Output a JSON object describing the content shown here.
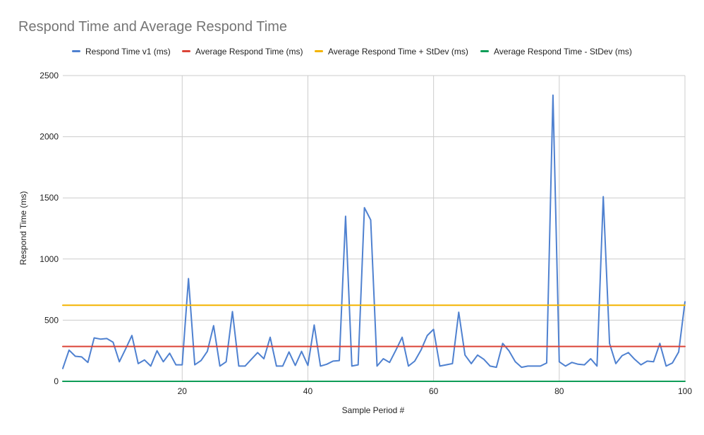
{
  "chart_data": {
    "type": "line",
    "title": "Respond Time and Average Respond Time",
    "xlabel": "Sample Period #",
    "ylabel": "Respond Time (ms)",
    "xlim": [
      1,
      100
    ],
    "ylim": [
      0,
      2500
    ],
    "x_ticks": [
      20,
      40,
      60,
      80,
      100
    ],
    "y_ticks": [
      0,
      500,
      1000,
      1500,
      2000,
      2500
    ],
    "grid": true,
    "legend_position": "top",
    "series": [
      {
        "name": "Respond Time v1 (ms)",
        "color": "#4f81d0",
        "x": [
          1,
          2,
          3,
          4,
          5,
          6,
          7,
          8,
          9,
          10,
          11,
          12,
          13,
          14,
          15,
          16,
          17,
          18,
          19,
          20,
          21,
          22,
          23,
          24,
          25,
          26,
          27,
          28,
          29,
          30,
          31,
          32,
          33,
          34,
          35,
          36,
          37,
          38,
          39,
          40,
          41,
          42,
          43,
          44,
          45,
          46,
          47,
          48,
          49,
          50,
          51,
          52,
          53,
          54,
          55,
          56,
          57,
          58,
          59,
          60,
          61,
          62,
          63,
          64,
          65,
          66,
          67,
          68,
          69,
          70,
          71,
          72,
          73,
          74,
          75,
          76,
          77,
          78,
          79,
          80,
          81,
          82,
          83,
          84,
          85,
          86,
          87,
          88,
          89,
          90,
          91,
          92,
          93,
          94,
          95,
          96,
          97,
          98,
          99,
          100
        ],
        "values": [
          105,
          255,
          205,
          200,
          155,
          355,
          345,
          350,
          320,
          160,
          265,
          375,
          145,
          175,
          125,
          250,
          160,
          230,
          135,
          135,
          840,
          135,
          170,
          245,
          455,
          125,
          160,
          570,
          125,
          125,
          180,
          235,
          185,
          360,
          125,
          125,
          240,
          130,
          245,
          130,
          460,
          125,
          140,
          165,
          170,
          1350,
          125,
          135,
          1420,
          1320,
          125,
          185,
          155,
          255,
          360,
          125,
          165,
          255,
          375,
          425,
          125,
          135,
          145,
          565,
          215,
          145,
          215,
          180,
          125,
          115,
          310,
          250,
          160,
          115,
          125,
          125,
          125,
          150,
          2340,
          160,
          125,
          155,
          140,
          135,
          185,
          125,
          1510,
          310,
          145,
          210,
          235,
          180,
          135,
          165,
          160,
          310,
          125,
          150,
          240,
          650
        ]
      },
      {
        "name": "Average Respond Time (ms)",
        "color": "#db4437",
        "x": [
          1,
          100
        ],
        "values": [
          285,
          285
        ]
      },
      {
        "name": "Average Respond Time + StDev (ms)",
        "color": "#f4b400",
        "x": [
          1,
          100
        ],
        "values": [
          622,
          622
        ]
      },
      {
        "name": "Average Respond Time - StDev (ms)",
        "color": "#0f9d58",
        "x": [
          1,
          100
        ],
        "values": [
          0,
          0
        ]
      }
    ]
  }
}
